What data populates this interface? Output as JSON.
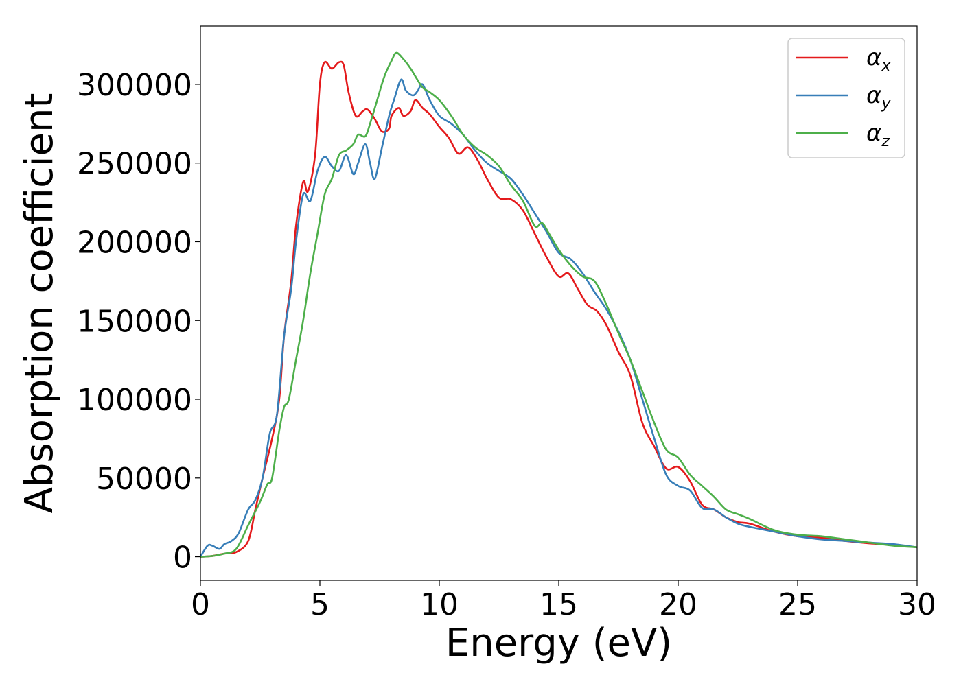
{
  "chart_data": {
    "type": "line",
    "xlabel": "Energy (eV)",
    "ylabel": "Absorption coefficient",
    "xlim": [
      0,
      30
    ],
    "ylim": [
      -15000,
      337000
    ],
    "xticks": [
      0,
      5,
      10,
      15,
      20,
      25,
      30
    ],
    "yticks": [
      0,
      50000,
      100000,
      150000,
      200000,
      250000,
      300000
    ],
    "grid": false,
    "legend_position": "top-right",
    "series": [
      {
        "name": "α",
        "subscript": "x",
        "color": "#e41a1c",
        "x": [
          0,
          0.5,
          1.0,
          1.5,
          2.0,
          2.3,
          2.6,
          3.0,
          3.3,
          3.5,
          3.8,
          4.0,
          4.3,
          4.5,
          4.8,
          5.0,
          5.2,
          5.5,
          5.8,
          6.0,
          6.2,
          6.5,
          6.8,
          7.0,
          7.3,
          7.6,
          7.9,
          8.0,
          8.3,
          8.5,
          8.8,
          9.0,
          9.3,
          9.6,
          10.0,
          10.4,
          10.8,
          11.2,
          11.6,
          12.0,
          12.5,
          13.0,
          13.5,
          14.0,
          14.5,
          15.0,
          15.4,
          15.8,
          16.2,
          16.6,
          17.0,
          17.5,
          18.0,
          18.5,
          19.0,
          19.5,
          20.0,
          20.5,
          21.0,
          21.5,
          22.0,
          22.5,
          23.0,
          24.0,
          25.0,
          26.0,
          27.0,
          28.0,
          29.0,
          30.0
        ],
        "values": [
          0,
          500,
          2000,
          3000,
          10000,
          30000,
          50000,
          75000,
          100000,
          140000,
          175000,
          210000,
          238000,
          232000,
          255000,
          300000,
          314000,
          310000,
          314000,
          312000,
          295000,
          280000,
          283000,
          284000,
          278000,
          270000,
          272000,
          280000,
          285000,
          280000,
          283000,
          290000,
          285000,
          281000,
          273000,
          266000,
          256000,
          260000,
          252000,
          240000,
          228000,
          227000,
          220000,
          205000,
          190000,
          178000,
          180000,
          170000,
          160000,
          156000,
          147000,
          130000,
          115000,
          85000,
          70000,
          56000,
          57000,
          48000,
          33000,
          30000,
          25000,
          22000,
          21000,
          16000,
          13000,
          12000,
          10000,
          8500,
          7500,
          6000
        ]
      },
      {
        "name": "α",
        "subscript": "y",
        "color": "#377eb8",
        "x": [
          0,
          0.3,
          0.5,
          0.8,
          1.0,
          1.3,
          1.6,
          2.0,
          2.3,
          2.6,
          2.9,
          3.2,
          3.5,
          3.8,
          4.0,
          4.3,
          4.6,
          4.9,
          5.2,
          5.5,
          5.8,
          6.1,
          6.4,
          6.6,
          6.9,
          7.1,
          7.3,
          7.6,
          7.9,
          8.1,
          8.4,
          8.6,
          8.9,
          9.1,
          9.3,
          9.6,
          10.0,
          10.5,
          11.0,
          11.5,
          12.0,
          12.5,
          13.0,
          13.5,
          14.0,
          14.5,
          15.0,
          15.5,
          16.0,
          16.5,
          17.0,
          17.5,
          18.0,
          18.5,
          19.0,
          19.5,
          20.0,
          20.5,
          21.0,
          21.5,
          22.0,
          22.5,
          23.0,
          24.0,
          25.0,
          26.0,
          27.0,
          28.0,
          29.0,
          30.0
        ],
        "values": [
          0,
          7000,
          7000,
          5000,
          8000,
          10000,
          15000,
          30000,
          36000,
          50000,
          78000,
          90000,
          140000,
          170000,
          200000,
          230000,
          226000,
          245000,
          254000,
          248000,
          245000,
          255000,
          243000,
          250000,
          262000,
          250000,
          240000,
          260000,
          280000,
          290000,
          303000,
          296000,
          293000,
          296000,
          300000,
          290000,
          280000,
          275000,
          268000,
          258000,
          250000,
          245000,
          240000,
          230000,
          218000,
          206000,
          193000,
          189000,
          180000,
          168000,
          157000,
          143000,
          125000,
          100000,
          75000,
          52000,
          45000,
          42000,
          31000,
          30000,
          25000,
          21000,
          19000,
          16000,
          13000,
          11000,
          10000,
          9000,
          8000,
          6000
        ]
      },
      {
        "name": "α",
        "subscript": "z",
        "color": "#4daf4a",
        "x": [
          0,
          0.5,
          1.0,
          1.5,
          2.0,
          2.5,
          2.8,
          3.0,
          3.3,
          3.5,
          3.7,
          4.0,
          4.3,
          4.6,
          4.9,
          5.2,
          5.5,
          5.8,
          6.1,
          6.4,
          6.6,
          6.9,
          7.1,
          7.4,
          7.7,
          8.0,
          8.2,
          8.5,
          8.8,
          9.0,
          9.3,
          9.6,
          10.0,
          10.5,
          11.0,
          11.5,
          12.0,
          12.5,
          13.0,
          13.5,
          14.0,
          14.3,
          14.6,
          15.0,
          15.5,
          16.0,
          16.5,
          17.0,
          17.5,
          18.0,
          18.5,
          19.0,
          19.5,
          20.0,
          20.5,
          21.0,
          21.5,
          22.0,
          22.5,
          23.0,
          24.0,
          25.0,
          26.0,
          27.0,
          28.0,
          29.0,
          30.0
        ],
        "values": [
          0,
          500,
          2000,
          5000,
          20000,
          35000,
          46000,
          50000,
          80000,
          95000,
          100000,
          125000,
          150000,
          180000,
          205000,
          230000,
          240000,
          255000,
          258000,
          262000,
          268000,
          267000,
          275000,
          290000,
          305000,
          315000,
          320000,
          316000,
          310000,
          305000,
          298000,
          295000,
          290000,
          280000,
          268000,
          260000,
          255000,
          248000,
          236000,
          226000,
          210000,
          212000,
          205000,
          195000,
          185000,
          178000,
          175000,
          160000,
          142000,
          125000,
          105000,
          85000,
          68000,
          63000,
          52000,
          45000,
          38000,
          30000,
          27000,
          24000,
          17000,
          14000,
          13000,
          11000,
          9000,
          7000,
          6000
        ]
      }
    ]
  }
}
